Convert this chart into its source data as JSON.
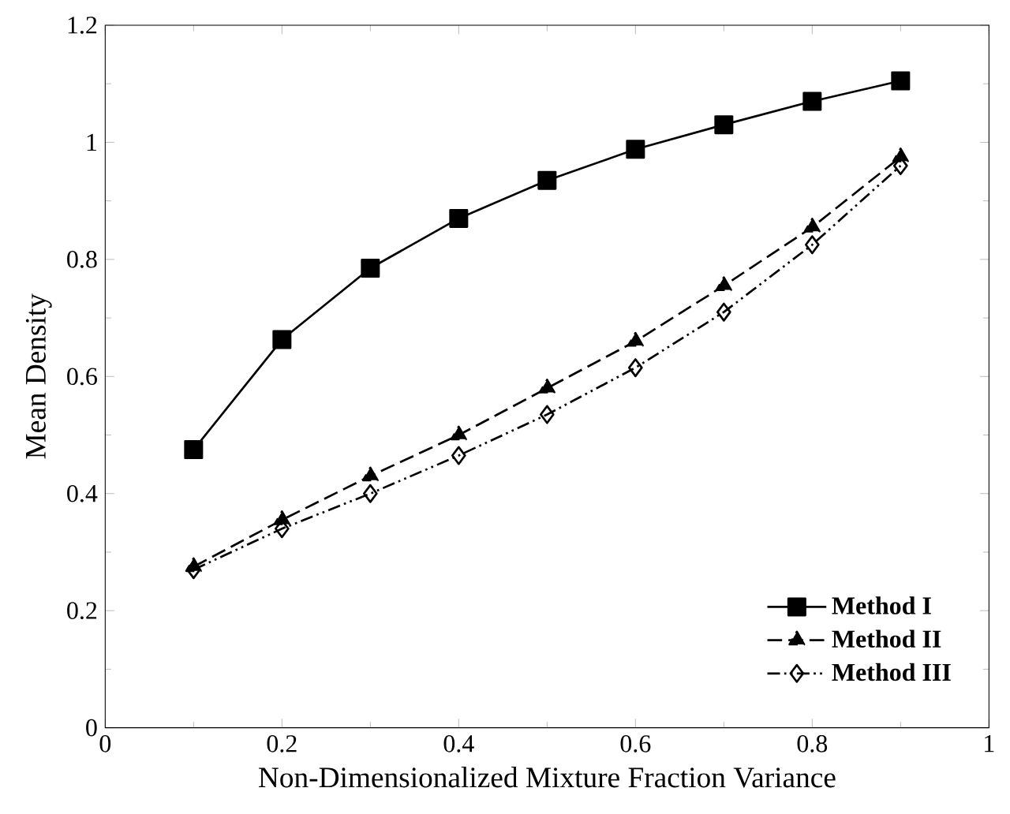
{
  "chart_data": {
    "type": "line",
    "xlabel": "Non-Dimensionalized Mixture Fraction Variance",
    "ylabel": "Mean Density",
    "x": [
      0.1,
      0.2,
      0.3,
      0.4,
      0.5,
      0.6,
      0.7,
      0.8,
      0.9
    ],
    "series": [
      {
        "name": "Method I",
        "color": "#000000",
        "marker": "square",
        "line_style": "solid",
        "values": [
          0.475,
          0.663,
          0.785,
          0.87,
          0.935,
          0.988,
          1.03,
          1.07,
          1.105
        ]
      },
      {
        "name": "Method II",
        "color": "#000000",
        "marker": "triangle",
        "line_style": "dashed",
        "values": [
          0.275,
          0.355,
          0.43,
          0.5,
          0.58,
          0.66,
          0.755,
          0.855,
          0.975
        ]
      },
      {
        "name": "Method III",
        "color": "#000000",
        "marker": "diamond",
        "line_style": "dotted",
        "values": [
          0.27,
          0.34,
          0.4,
          0.465,
          0.535,
          0.615,
          0.71,
          0.825,
          0.96
        ]
      }
    ],
    "xlim": [
      0,
      1
    ],
    "ylim": [
      0,
      1.2
    ],
    "xticks": [
      0,
      0.2,
      0.4,
      0.6,
      0.8,
      1
    ],
    "yticks": [
      0,
      0.2,
      0.4,
      0.6,
      0.8,
      1,
      1.2
    ],
    "grid": false,
    "legend": "bottom right"
  }
}
